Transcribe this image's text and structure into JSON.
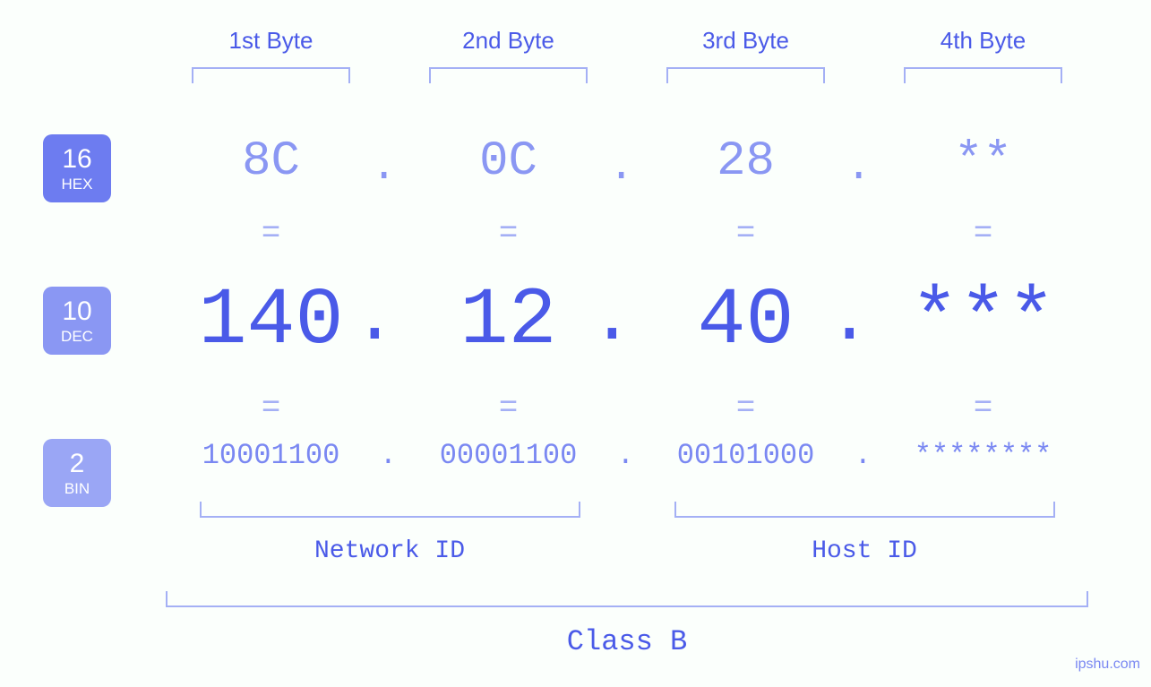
{
  "colors": {
    "background": "#fbfffc",
    "primary": "#4a5ae8",
    "light": "#8a97f3",
    "lighter": "#a4b0f5",
    "badge_hex": "#6d7cf0",
    "badge_dec": "#8a97f3",
    "badge_bin": "#9aa6f5",
    "white": "#ffffff"
  },
  "typography": {
    "byte_header_fontsize": 26,
    "hex_fontsize": 54,
    "dec_fontsize": 90,
    "bin_fontsize": 32,
    "eq_fontsize": 36,
    "lower_label_fontsize": 28,
    "class_label_fontsize": 32,
    "badge_num_fontsize": 30,
    "badge_lbl_fontsize": 17,
    "mono_family": "Courier New, monospace",
    "sans_family": "Arial, sans-serif"
  },
  "byte_headers": [
    "1st Byte",
    "2nd Byte",
    "3rd Byte",
    "4th Byte"
  ],
  "badges": {
    "hex": {
      "num": "16",
      "lbl": "HEX"
    },
    "dec": {
      "num": "10",
      "lbl": "DEC"
    },
    "bin": {
      "num": "2",
      "lbl": "BIN"
    }
  },
  "hex": [
    "8C",
    "0C",
    "28",
    "**"
  ],
  "dec": [
    "140",
    "12",
    "40",
    "***"
  ],
  "bin": [
    "10001100",
    "00001100",
    "00101000",
    "********"
  ],
  "separator": ".",
  "equals": "=",
  "lower": {
    "network_id": "Network ID",
    "host_id": "Host ID",
    "class": "Class B"
  },
  "watermark": "ipshu.com"
}
